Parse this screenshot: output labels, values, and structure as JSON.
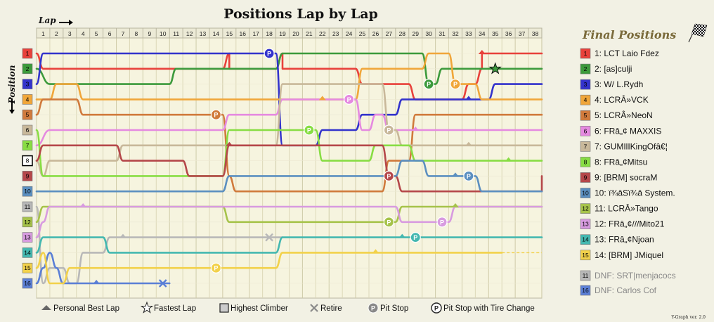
{
  "chart_data": {
    "type": "line",
    "title": "Positions Lap by Lap",
    "xlabel": "Lap",
    "ylabel": "Position",
    "laps": [
      1,
      2,
      3,
      4,
      5,
      6,
      7,
      8,
      9,
      10,
      11,
      12,
      13,
      14,
      15,
      16,
      17,
      18,
      19,
      20,
      21,
      22,
      23,
      24,
      25,
      26,
      27,
      28,
      29,
      30,
      31,
      32,
      33,
      34,
      35,
      36,
      37,
      38
    ],
    "positions": [
      1,
      2,
      3,
      4,
      5,
      6,
      7,
      8,
      9,
      10,
      11,
      12,
      13,
      14,
      15,
      16
    ],
    "final_title": "Final Positions",
    "series": [
      {
        "name": "1: LCT Laio Fdez",
        "final": "1",
        "color": "#e8413b",
        "path": [
          [
            0,
            1
          ],
          [
            0.5,
            2
          ],
          [
            14,
            2
          ],
          [
            14.5,
            1
          ],
          [
            14.5,
            2
          ],
          [
            18,
            2
          ],
          [
            18.5,
            1
          ],
          [
            18.5,
            2
          ],
          [
            24,
            2
          ],
          [
            24.5,
            3
          ],
          [
            28,
            3
          ],
          [
            28.5,
            4
          ],
          [
            32,
            4
          ],
          [
            32.5,
            3
          ],
          [
            33,
            3
          ],
          [
            33.5,
            2
          ],
          [
            33.5,
            1
          ],
          [
            38,
            1
          ]
        ],
        "markers": [
          {
            "lap": 34,
            "type": "pb"
          }
        ]
      },
      {
        "name": "2: [as]culji",
        "final": "2",
        "color": "#3c9a3c",
        "path": [
          [
            0,
            2
          ],
          [
            1,
            3
          ],
          [
            10,
            3
          ],
          [
            10.5,
            2
          ],
          [
            18,
            2
          ],
          [
            18.5,
            1
          ],
          [
            29,
            1
          ],
          [
            29.5,
            3
          ],
          [
            30,
            3
          ],
          [
            30.5,
            2
          ],
          [
            38,
            2
          ]
        ],
        "markers": [
          {
            "lap": 30,
            "type": "pit"
          },
          {
            "lap": 35,
            "type": "fastest"
          }
        ]
      },
      {
        "name": "3: W/ L.Rydh",
        "final": "3",
        "color": "#3333cc",
        "path": [
          [
            0,
            3
          ],
          [
            0.5,
            1
          ],
          [
            18,
            1
          ],
          [
            18.5,
            7
          ],
          [
            21,
            7
          ],
          [
            21.5,
            6
          ],
          [
            24,
            6
          ],
          [
            24.5,
            5
          ],
          [
            27,
            5
          ],
          [
            27.5,
            4
          ],
          [
            34,
            4
          ],
          [
            34.5,
            3
          ],
          [
            38,
            3
          ]
        ],
        "markers": [
          {
            "lap": 18,
            "type": "pit"
          },
          {
            "lap": 33,
            "type": "pb"
          }
        ]
      },
      {
        "name": "4: LCRÂ»VCK",
        "final": "4",
        "color": "#f0a63a",
        "path": [
          [
            0,
            4
          ],
          [
            1,
            4
          ],
          [
            1.5,
            3
          ],
          [
            3,
            3
          ],
          [
            3.5,
            4
          ],
          [
            24,
            4
          ],
          [
            24.5,
            2
          ],
          [
            29,
            2
          ],
          [
            29.5,
            1
          ],
          [
            31,
            1
          ],
          [
            31.5,
            3
          ],
          [
            33,
            3
          ],
          [
            33.5,
            4
          ],
          [
            38,
            4
          ]
        ],
        "markers": [
          {
            "lap": 22,
            "type": "pb"
          },
          {
            "lap": 32,
            "type": "pit"
          }
        ]
      },
      {
        "name": "5: LCRÂ»NeoN",
        "final": "5",
        "color": "#d07a3c",
        "path": [
          [
            0,
            5
          ],
          [
            0.5,
            4
          ],
          [
            3,
            4
          ],
          [
            3.5,
            5
          ],
          [
            14,
            5
          ],
          [
            14.5,
            9
          ],
          [
            15,
            10
          ],
          [
            18,
            10
          ],
          [
            18.5,
            10
          ],
          [
            26,
            10
          ],
          [
            26.5,
            8
          ],
          [
            28,
            8
          ],
          [
            28.5,
            5
          ],
          [
            38,
            5
          ]
        ],
        "markers": [
          {
            "lap": 14,
            "type": "pit"
          }
        ]
      },
      {
        "name": "6: FRâ„¢ MAXXIS",
        "final": "6",
        "color": "#e58ae0",
        "path": [
          [
            0,
            7
          ],
          [
            1,
            6
          ],
          [
            14,
            6
          ],
          [
            14.5,
            5
          ],
          [
            18,
            5
          ],
          [
            18.5,
            4
          ],
          [
            24,
            4
          ],
          [
            24.5,
            6
          ],
          [
            25,
            6
          ],
          [
            25.5,
            5
          ],
          [
            26,
            5
          ],
          [
            26.5,
            6
          ],
          [
            38,
            6
          ]
        ],
        "markers": [
          {
            "lap": 24,
            "type": "pit"
          },
          {
            "lap": 29,
            "type": "pb"
          }
        ]
      },
      {
        "name": "7: GUMIlIKingOfâ€¦",
        "final": "7",
        "color": "#c8b89a",
        "path": [
          [
            0,
            8
          ],
          [
            0.5,
            9
          ],
          [
            1,
            8
          ],
          [
            6,
            8
          ],
          [
            6.5,
            7
          ],
          [
            18,
            7
          ],
          [
            18.5,
            3
          ],
          [
            24,
            3
          ],
          [
            24.5,
            3
          ],
          [
            26,
            3
          ],
          [
            26.5,
            6
          ],
          [
            27,
            6
          ],
          [
            27.5,
            7
          ],
          [
            38,
            7
          ]
        ],
        "markers": [
          {
            "lap": 27,
            "type": "pit"
          },
          {
            "lap": 33,
            "type": "pb"
          }
        ]
      },
      {
        "name": "8: FRâ„¢Mitsu",
        "final": "8",
        "color": "#88dd44",
        "path": [
          [
            0,
            6
          ],
          [
            0.5,
            9
          ],
          [
            14,
            9
          ],
          [
            14.5,
            6
          ],
          [
            18,
            6
          ],
          [
            18.5,
            6
          ],
          [
            21,
            6
          ],
          [
            21.5,
            8
          ],
          [
            25,
            8
          ],
          [
            25.5,
            7
          ],
          [
            28,
            7
          ],
          [
            28.5,
            8
          ],
          [
            38,
            8
          ]
        ],
        "markers": [
          {
            "lap": 21,
            "type": "pit"
          },
          {
            "lap": 36,
            "type": "pb"
          }
        ]
      },
      {
        "name": "9: [BRM] socraM",
        "final": "9",
        "color": "#b5474a",
        "path": [
          [
            0,
            8
          ],
          [
            0.5,
            7
          ],
          [
            6,
            7
          ],
          [
            6.5,
            8
          ],
          [
            11,
            8
          ],
          [
            11.5,
            9
          ],
          [
            14,
            9
          ],
          [
            14.5,
            7
          ],
          [
            18,
            7
          ],
          [
            18.5,
            7
          ],
          [
            26,
            7
          ],
          [
            26.5,
            9
          ],
          [
            27,
            9
          ],
          [
            27.5,
            10
          ],
          [
            38,
            10
          ],
          [
            38,
            9
          ]
        ],
        "markers": [
          {
            "lap": 15,
            "type": "pb"
          },
          {
            "lap": 27,
            "type": "pit"
          }
        ]
      },
      {
        "name": "10: ï¾âSï¾â System.",
        "final": "10",
        "color": "#5b8fc0",
        "path": [
          [
            0,
            10
          ],
          [
            14,
            10
          ],
          [
            14.5,
            9
          ],
          [
            18,
            9
          ],
          [
            18.5,
            9
          ],
          [
            26,
            9
          ],
          [
            26.5,
            9
          ],
          [
            27,
            9
          ],
          [
            27.5,
            8
          ],
          [
            29,
            8
          ],
          [
            29.5,
            9
          ],
          [
            33,
            9
          ],
          [
            33.5,
            10
          ],
          [
            38,
            10
          ]
        ],
        "markers": [
          {
            "lap": 32,
            "type": "pb"
          },
          {
            "lap": 33,
            "type": "pit"
          }
        ]
      },
      {
        "name": "11: LCRÂ»Tango",
        "final": "12",
        "color": "#a6c34a",
        "path": [
          [
            0,
            12
          ],
          [
            0.5,
            11
          ],
          [
            14,
            11
          ],
          [
            14.5,
            12
          ],
          [
            26,
            12
          ],
          [
            26.5,
            12
          ],
          [
            27,
            12
          ],
          [
            27.5,
            11
          ],
          [
            38,
            11
          ]
        ],
        "markers": [
          {
            "lap": 27,
            "type": "pit"
          },
          {
            "lap": 32,
            "type": "pb"
          }
        ]
      },
      {
        "name": "12: FRâ„¢///Mito21",
        "final": "13",
        "color": "#d89be0",
        "path": [
          [
            0,
            13
          ],
          [
            0.5,
            12
          ],
          [
            1,
            11
          ],
          [
            27,
            11
          ],
          [
            27.5,
            12
          ],
          [
            31,
            12
          ],
          [
            31.5,
            11
          ],
          [
            38,
            11
          ]
        ],
        "markers": [
          {
            "lap": 4,
            "type": "pb"
          },
          {
            "lap": 31,
            "type": "pit"
          }
        ]
      },
      {
        "name": "13: FRâ„¢Njoan",
        "final": "14",
        "color": "#44b8b0",
        "path": [
          [
            0,
            14
          ],
          [
            0.5,
            13
          ],
          [
            5,
            13
          ],
          [
            5.5,
            14
          ],
          [
            18,
            14
          ],
          [
            18.5,
            13
          ],
          [
            38,
            13
          ]
        ],
        "markers": [
          {
            "lap": 28,
            "type": "pb"
          },
          {
            "lap": 29,
            "type": "pit"
          }
        ]
      },
      {
        "name": "14: [BRM] JMiquel",
        "final": "15",
        "color": "#f2d14a",
        "path": [
          [
            0,
            15
          ],
          [
            0.5,
            14
          ],
          [
            1,
            16
          ],
          [
            2,
            16
          ],
          [
            2.5,
            15
          ],
          [
            18,
            15
          ],
          [
            18.5,
            14
          ],
          [
            35,
            14
          ]
        ],
        "markers": [
          {
            "lap": 14,
            "type": "pit"
          },
          {
            "lap": 26,
            "type": "pb"
          }
        ]
      }
    ],
    "dnf": [
      {
        "name": "DNF: SRT|menjacocs",
        "final": "11",
        "color": "#b8b8b8",
        "path": [
          [
            0,
            11
          ],
          [
            0.5,
            16
          ],
          [
            1,
            15
          ],
          [
            2,
            15
          ],
          [
            2.5,
            16
          ],
          [
            3,
            16
          ],
          [
            3.5,
            14
          ],
          [
            5,
            14
          ],
          [
            5.5,
            13
          ],
          [
            18,
            13
          ],
          [
            18.5,
            13
          ]
        ],
        "markers": [
          {
            "lap": 7,
            "type": "pb"
          },
          {
            "lap": 18,
            "type": "retire"
          }
        ]
      },
      {
        "name": "DNF: Carlos Cof",
        "final": "16",
        "color": "#5b7fd6",
        "path": [
          [
            0,
            16
          ],
          [
            0.5,
            15
          ],
          [
            1,
            14
          ],
          [
            1.5,
            15
          ],
          [
            2,
            16
          ],
          [
            3,
            16
          ],
          [
            10,
            16
          ]
        ],
        "markers": [
          {
            "lap": 5,
            "type": "pb"
          },
          {
            "lap": 10,
            "type": "retire"
          }
        ]
      }
    ],
    "start_colors": [
      "#e8413b",
      "#3c9a3c",
      "#3333cc",
      "#f0a63a",
      "#d07a3c",
      "#c8b89a",
      "#88dd44",
      "#e58ae0",
      "#b5474a",
      "#5b8fc0",
      "#b8b8b8",
      "#a6c34a",
      "#d89be0",
      "#44b8b0",
      "#f2d14a",
      "#5b7fd6"
    ],
    "highest_climber_start": 8
  },
  "legend": {
    "personal_best": "Personal Best Lap",
    "fastest": "Fastest Lap",
    "climber": "Highest Climber",
    "retire": "Retire",
    "pit": "Pit Stop",
    "pit_tire": "Pit Stop with Tire Change",
    "pit_glyph": "P"
  },
  "version": "Y-Graph ver. 2.0"
}
